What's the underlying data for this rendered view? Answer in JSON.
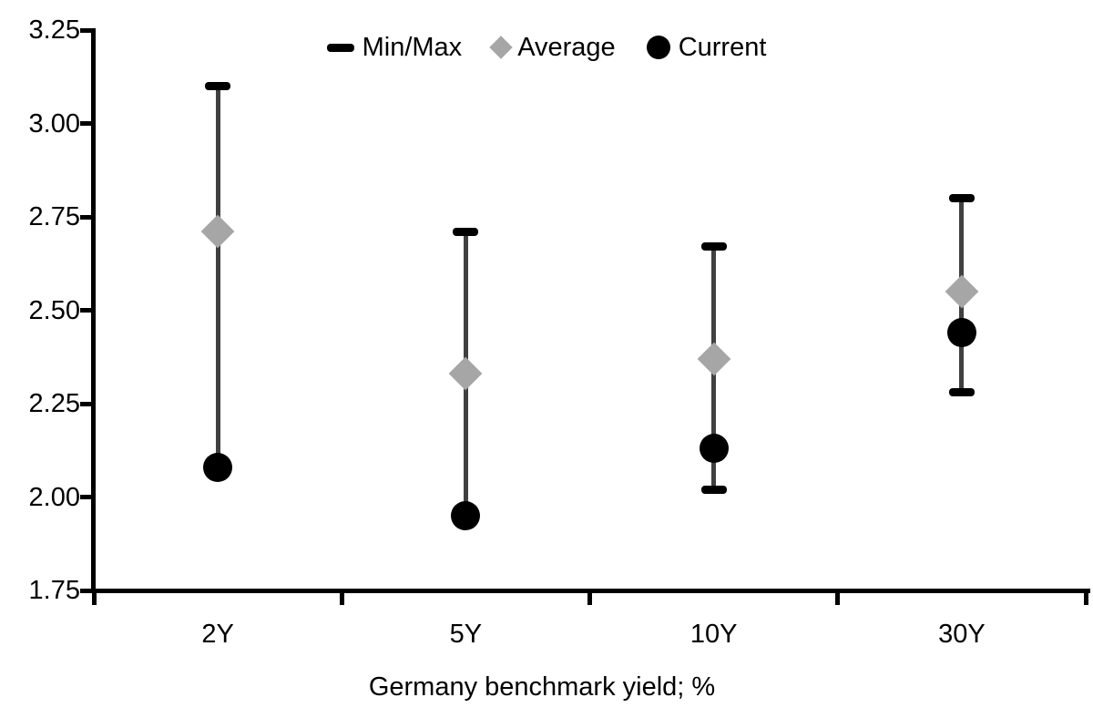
{
  "figure": {
    "xlabel": "Germany benchmark yield; %"
  },
  "legend": {
    "items": [
      {
        "label": "Min/Max",
        "marker": "dash-icon"
      },
      {
        "label": "Average",
        "marker": "diamond-icon"
      },
      {
        "label": "Current",
        "marker": "circle-icon"
      }
    ]
  },
  "colors": {
    "cap": "#000000",
    "range_line": "#404040",
    "average": "#a6a6a6",
    "current": "#000000",
    "axis": "#000000",
    "text": "#000000"
  },
  "chart_data": {
    "type": "scatter",
    "subtype": "minmax-range-with-markers",
    "categories": [
      "2Y",
      "5Y",
      "10Y",
      "30Y"
    ],
    "series": [
      {
        "name": "Min/Max",
        "min": [
          2.08,
          1.95,
          2.02,
          2.28
        ],
        "max": [
          3.1,
          2.71,
          2.67,
          2.8
        ]
      },
      {
        "name": "Average",
        "values": [
          2.71,
          2.33,
          2.37,
          2.55
        ]
      },
      {
        "name": "Current",
        "values": [
          2.08,
          1.95,
          2.13,
          2.44
        ]
      }
    ],
    "min_cap_visible": [
      false,
      false,
      true,
      true
    ],
    "title": "",
    "xlabel": "Germany benchmark yield; %",
    "ylabel": "",
    "ylim": [
      1.75,
      3.25
    ],
    "ytick_step": 0.25,
    "yticks": [
      "3.25",
      "3.00",
      "2.75",
      "2.50",
      "2.25",
      "2.00",
      "1.75"
    ],
    "grid": false,
    "legend_position": "top-center"
  }
}
